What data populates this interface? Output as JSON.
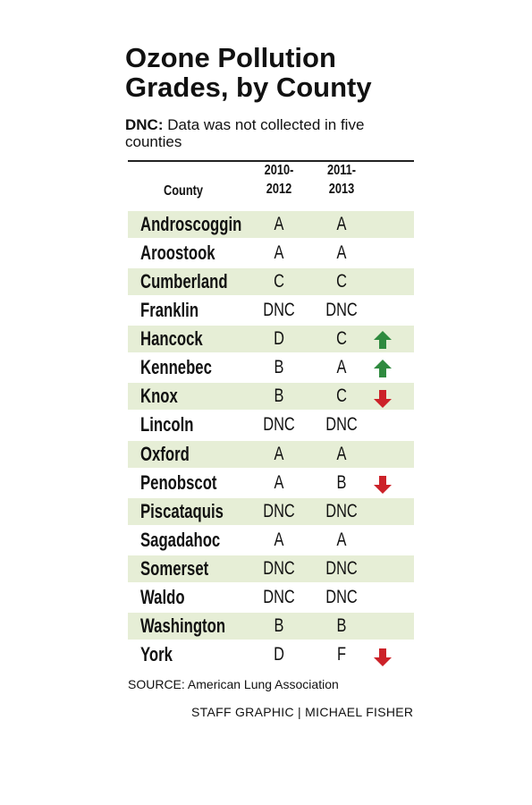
{
  "header": {
    "title": "Ozone Pollution Grades, by County",
    "note_term": "DNC:",
    "note_text": "Data was not collected in five counties"
  },
  "table": {
    "columns": [
      [
        "County"
      ],
      [
        "2010-",
        "2012"
      ],
      [
        "2011-",
        "2013"
      ]
    ],
    "rows": [
      [
        "Androscoggin",
        "A",
        "A"
      ],
      [
        "Aroostook",
        "A",
        "A"
      ],
      [
        "Cumberland",
        "C",
        "C"
      ],
      [
        "Franklin",
        "DNC",
        "DNC"
      ],
      [
        "Hancock",
        "D",
        "C"
      ],
      [
        "Kennebec",
        "B",
        "A"
      ],
      [
        "Knox",
        "B",
        "C"
      ],
      [
        "Lincoln",
        "DNC",
        "DNC"
      ],
      [
        "Oxford",
        "A",
        "A"
      ],
      [
        "Penobscot",
        "A",
        "B"
      ],
      [
        "Piscataquis",
        "DNC",
        "DNC"
      ],
      [
        "Sagadahoc",
        "A",
        "A"
      ],
      [
        "Somerset",
        "DNC",
        "DNC"
      ],
      [
        "Waldo",
        "DNC",
        "DNC"
      ],
      [
        "Washington",
        "B",
        "B"
      ],
      [
        "York",
        "D",
        "F"
      ]
    ]
  },
  "footer": {
    "source": "SOURCE: American Lung Association",
    "credit": "STAFF GRAPHIC | MICHAEL FISHER"
  }
}
